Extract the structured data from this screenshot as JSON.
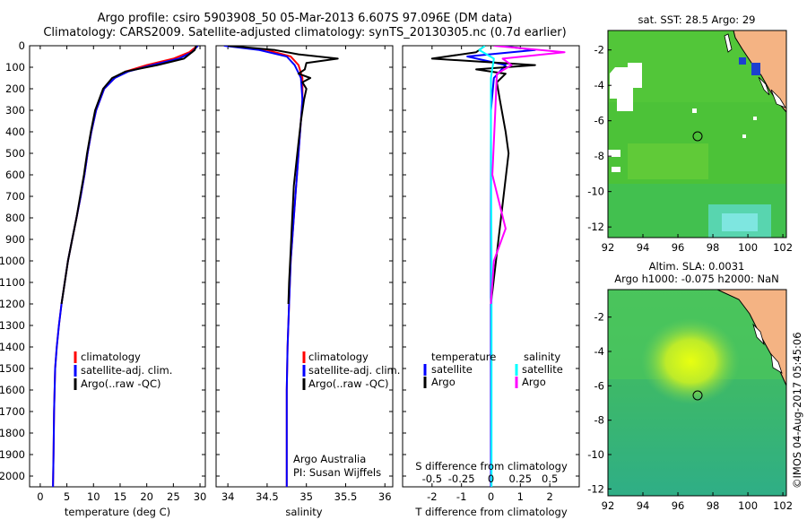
{
  "title_line1": "Argo profile: csiro 5903908_50 05-Mar-2013 6.607S 97.096E (DM data)",
  "title_line2": "Climatology: CARS2009. Satellite-adjusted climatology: synTS_20130305.nc (0.7d earlier)",
  "colors": {
    "climatology": "#ff0000",
    "satellite": "#0000ff",
    "argo": "#000000",
    "sat_s": "#00ffff",
    "argo_s": "#ff00ff",
    "land": "#f4b383"
  },
  "depth_ticks": [
    "0",
    "100",
    "200",
    "300",
    "400",
    "500",
    "600",
    "700",
    "800",
    "900",
    "1000",
    "1100",
    "1200",
    "1300",
    "1400",
    "1500",
    "1600",
    "1700",
    "1800",
    "1900",
    "2000"
  ],
  "panel_temp": {
    "xlabel": "temperature (deg C)",
    "xticks": [
      "0",
      "5",
      "10",
      "15",
      "20",
      "25",
      "30"
    ],
    "legend": [
      "climatology",
      "satellite-adj. clim.",
      "Argo(..raw -QC)"
    ],
    "chart_data": {
      "type": "line",
      "xlim": [
        -2,
        31
      ],
      "ylim": [
        2050,
        0
      ],
      "series": [
        {
          "name": "climatology",
          "color": "red",
          "x": [
            29.5,
            28,
            25,
            20,
            16,
            14,
            12,
            10.5,
            9.6,
            8.9,
            8.3,
            7.6,
            6.8,
            6.0,
            5.2,
            4.6,
            4.0,
            3.5,
            3.1,
            2.8,
            2.6,
            2.5,
            2.4
          ],
          "y": [
            0,
            30,
            60,
            90,
            120,
            150,
            200,
            300,
            400,
            500,
            600,
            700,
            800,
            900,
            1000,
            1100,
            1200,
            1300,
            1400,
            1500,
            1700,
            1900,
            2050
          ]
        },
        {
          "name": "satellite-adj. clim.",
          "color": "blue",
          "x": [
            29.6,
            28.5,
            26,
            21,
            16.5,
            14,
            12,
            10.5,
            9.6,
            8.9,
            8.3,
            7.6,
            6.8,
            6.0,
            5.2,
            4.6,
            4.0,
            3.5,
            3.1,
            2.8,
            2.6,
            2.5,
            2.4
          ],
          "y": [
            0,
            30,
            60,
            90,
            120,
            150,
            200,
            300,
            400,
            500,
            600,
            700,
            800,
            900,
            1000,
            1100,
            1200,
            1300,
            1400,
            1500,
            1700,
            1900,
            2050
          ]
        },
        {
          "name": "Argo",
          "color": "black",
          "x": [
            29.3,
            29,
            27,
            22,
            16,
            13.5,
            11.8,
            10.3,
            9.5,
            8.8,
            8.2,
            7.5,
            6.8,
            6.0,
            5.2,
            4.6,
            4.0
          ],
          "y": [
            0,
            20,
            60,
            90,
            120,
            150,
            200,
            300,
            400,
            500,
            600,
            700,
            800,
            900,
            1000,
            1100,
            1200
          ]
        }
      ]
    }
  },
  "panel_sal": {
    "xlabel": "salinity",
    "xticks": [
      "34",
      "34.5",
      "35",
      "35.5",
      "36"
    ],
    "legend": [
      "climatology",
      "satellite-adj. clim.",
      "Argo(..raw -QC)"
    ],
    "credit1": "Argo Australia",
    "credit2": "PI: Susan Wijffels",
    "chart_data": {
      "type": "line",
      "xlim": [
        33.85,
        36.1
      ],
      "ylim": [
        2050,
        0
      ],
      "series": [
        {
          "name": "climatology",
          "color": "red",
          "x": [
            34.0,
            34.5,
            34.8,
            34.9,
            34.95,
            34.95,
            34.93,
            34.91,
            34.89,
            34.86,
            34.83,
            34.8,
            34.78,
            34.76,
            34.75,
            34.75,
            34.75
          ],
          "y": [
            0,
            20,
            50,
            90,
            150,
            250,
            350,
            450,
            550,
            700,
            850,
            1000,
            1200,
            1400,
            1600,
            1800,
            2050
          ]
        },
        {
          "name": "satellite-adj. clim.",
          "color": "blue",
          "x": [
            33.95,
            34.4,
            34.75,
            34.85,
            34.93,
            34.95,
            34.93,
            34.91,
            34.89,
            34.86,
            34.83,
            34.8,
            34.78,
            34.76,
            34.75,
            34.75,
            34.75
          ],
          "y": [
            0,
            20,
            50,
            90,
            150,
            250,
            350,
            450,
            550,
            700,
            850,
            1000,
            1200,
            1400,
            1600,
            1800,
            2050
          ]
        },
        {
          "name": "Argo",
          "color": "black",
          "x": [
            34.0,
            34.6,
            34.9,
            35.4,
            35.0,
            34.98,
            34.9,
            35.05,
            34.95,
            35.0,
            34.97,
            34.93,
            34.9,
            34.87,
            34.84,
            34.82,
            34.8,
            34.78,
            34.77
          ],
          "y": [
            0,
            20,
            40,
            60,
            80,
            110,
            130,
            150,
            170,
            200,
            250,
            350,
            450,
            550,
            650,
            800,
            950,
            1100,
            1200
          ]
        }
      ]
    }
  },
  "panel_diff": {
    "xlabel": "T difference from climatology",
    "top_label": "S difference from climatology",
    "xticks": [
      "-2",
      "-1",
      "0",
      "1",
      "2"
    ],
    "sticks": [
      "-0.5",
      "-0.25",
      "0",
      "0.25",
      "0.5"
    ],
    "legend_t_title": "temperature",
    "legend_s_title": "salinity",
    "legend_sat": "satellite",
    "legend_argo": "Argo",
    "chart_data": {
      "type": "line",
      "xlim": [
        -3,
        3
      ],
      "ylim": [
        2050,
        0
      ],
      "series": [
        {
          "name": "satellite T",
          "color": "blue",
          "x": [
            0.3,
            1.5,
            -0.8,
            0.5,
            0.1,
            0.0,
            0.0,
            0.0,
            0.0
          ],
          "y": [
            0,
            20,
            50,
            90,
            150,
            300,
            600,
            1200,
            2050
          ]
        },
        {
          "name": "Argo T",
          "color": "black",
          "x": [
            -0.2,
            -0.5,
            -2.0,
            1.5,
            -0.5,
            0.5,
            0.2,
            0.3,
            0.5,
            0.6,
            0.0
          ],
          "y": [
            0,
            30,
            60,
            90,
            110,
            130,
            170,
            250,
            400,
            500,
            1200
          ]
        },
        {
          "name": "satellite S",
          "color": "cyan",
          "x": [
            -0.2,
            -0.4,
            0.1,
            0.0,
            0.0,
            0.02,
            0.02
          ],
          "y": [
            0,
            20,
            60,
            150,
            400,
            1000,
            2050
          ]
        },
        {
          "name": "Argo S",
          "color": "magenta",
          "x": [
            0.1,
            2.5,
            0.4,
            0.7,
            0.2,
            0.15,
            0.05,
            0.5,
            0.1,
            0.0
          ],
          "y": [
            0,
            30,
            60,
            90,
            130,
            300,
            600,
            850,
            1000,
            1200
          ]
        }
      ]
    }
  },
  "map_sst": {
    "title": "sat. SST: 28.5 Argo: 29",
    "xticks": [
      "92",
      "94",
      "96",
      "98",
      "100",
      "102"
    ],
    "yticks": [
      "-2",
      "-4",
      "-6",
      "-8",
      "-10",
      "-12"
    ]
  },
  "map_sla": {
    "title1": "Altim. SLA: 0.0031",
    "title2": "Argo h1000: -0.075 h2000: NaN",
    "xticks": [
      "92",
      "94",
      "96",
      "98",
      "100",
      "102"
    ],
    "yticks": [
      "-2",
      "-4",
      "-6",
      "-8",
      "-10",
      "-12"
    ]
  },
  "watermark": "©IMOS 04-Aug-2017 05:45:06"
}
